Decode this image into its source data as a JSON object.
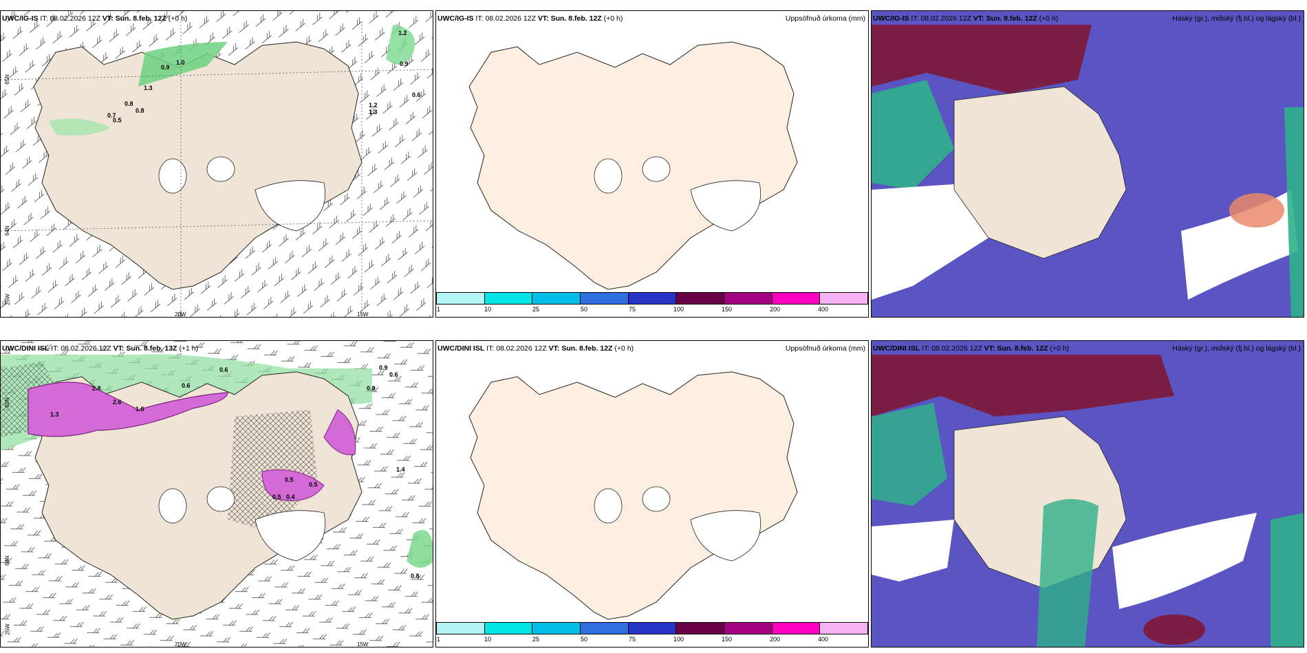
{
  "panels": [
    {
      "model": "UWC/IG-IS",
      "it_label": "IT:",
      "it": "08.02.2026 12Z",
      "vt_label": "VT:",
      "vt": "Sun. 8.feb. 12Z",
      "lead": "(+0 h)",
      "right_title": ""
    },
    {
      "model": "UWC/IG-IS",
      "it_label": "IT:",
      "it": "08.02.2026 12Z",
      "vt_label": "VT:",
      "vt": "Sun. 8.feb. 12Z",
      "lead": "(+0 h)",
      "right_title": "Uppsöfnuð úrkoma (mm)"
    },
    {
      "model": "UWC/IG-IS",
      "it_label": "IT:",
      "it": "08.02.2026 12Z",
      "vt_label": "VT:",
      "vt": "Sun. 8.feb. 12Z",
      "lead": "(+0 h)",
      "right_title": "Háský (gr.), miðský (fj.bl.) og lágský (bl.)"
    },
    {
      "model": "UWC/DINI ISL",
      "it_label": "IT:",
      "it": "08.02.2026 12Z",
      "vt_label": "VT:",
      "vt": "Sun. 8.feb. 13Z",
      "lead": "(+1 h)",
      "right_title": ""
    },
    {
      "model": "UWC/DINI ISL",
      "it_label": "IT:",
      "it": "08.02.2026 12Z",
      "vt_label": "VT:",
      "vt": "Sun. 8.feb. 12Z",
      "lead": "(+0 h)",
      "right_title": "Uppsöfnuð úrkoma (mm)"
    },
    {
      "model": "UWC/DINI ISL",
      "it_label": "IT:",
      "it": "08.02.2026 12Z",
      "vt_label": "VT:",
      "vt": "Sun. 8.feb. 12Z",
      "lead": "(+0 h)",
      "right_title": "Háský (gr.), miðský (fj.bl.) og lágský (bl.)"
    }
  ],
  "colorbar": {
    "ticks": [
      "1",
      "10",
      "25",
      "50",
      "75",
      "100",
      "150",
      "200",
      "400"
    ],
    "colors": [
      "#b3f5f5",
      "#00e6e6",
      "#00bfe6",
      "#2f6fe0",
      "#2833c8",
      "#6a0045",
      "#a30080",
      "#ff00c0",
      "#f5b3f5"
    ]
  },
  "coords": {
    "lat65": "65N",
    "lat64": "64N",
    "lon25": "25W",
    "lon20": "20W",
    "lon15": "15W"
  },
  "precip_labels_top": [
    "1.2",
    "0.9",
    "0.6",
    "1.2",
    "1.3",
    "0.7",
    "0.5",
    "0.8",
    "0.8",
    "1.0",
    "0.9",
    "1.3"
  ],
  "precip_labels_bottom": [
    "0.6",
    "0.9",
    "0.6",
    "0.6",
    "0.8",
    "2.8",
    "2.6",
    "1.6",
    "1.3",
    "0.5",
    "0.5",
    "1.4",
    "0.8",
    "0.5",
    "0.4"
  ],
  "colors": {
    "land": "#f0e4d6",
    "land_light": "#fcefe2",
    "green": "#7bd88c",
    "magenta": "#d46ad6",
    "purple_cloud": "#5a55c2",
    "maroon_cloud": "#7a1e45",
    "teal_cloud": "#2fb08a"
  }
}
